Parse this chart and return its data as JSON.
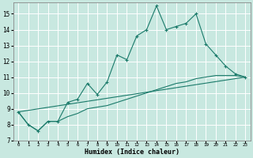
{
  "xlabel": "Humidex (Indice chaleur)",
  "background_color": "#c8e8e0",
  "grid_color": "#ffffff",
  "line_color": "#1a7a6a",
  "xlim": [
    -0.5,
    23.5
  ],
  "ylim": [
    7,
    15.7
  ],
  "yticks": [
    7,
    8,
    9,
    10,
    11,
    12,
    13,
    14,
    15
  ],
  "xticks": [
    0,
    1,
    2,
    3,
    4,
    5,
    6,
    7,
    8,
    9,
    10,
    11,
    12,
    13,
    14,
    15,
    16,
    17,
    18,
    19,
    20,
    21,
    22,
    23
  ],
  "line1_x": [
    0,
    1,
    2,
    3,
    4,
    5,
    6,
    7,
    8,
    9,
    10,
    11,
    12,
    13,
    14,
    15,
    16,
    17,
    18,
    19,
    20,
    21,
    22,
    23
  ],
  "line1_y": [
    8.8,
    8.0,
    7.6,
    8.2,
    8.2,
    9.4,
    9.6,
    10.6,
    9.9,
    10.7,
    12.4,
    12.1,
    13.6,
    14.0,
    15.5,
    14.0,
    14.2,
    14.4,
    15.0,
    13.1,
    12.4,
    11.7,
    11.2,
    11.0
  ],
  "line2_x": [
    0,
    23
  ],
  "line2_y": [
    8.8,
    11.0
  ],
  "line3_x": [
    0,
    1,
    2,
    3,
    4,
    5,
    6,
    7,
    8,
    9,
    10,
    11,
    12,
    13,
    14,
    15,
    16,
    17,
    18,
    19,
    20,
    21,
    22,
    23
  ],
  "line3_y": [
    8.8,
    8.0,
    7.6,
    8.2,
    8.2,
    8.5,
    8.7,
    9.0,
    9.1,
    9.2,
    9.4,
    9.6,
    9.8,
    10.0,
    10.2,
    10.4,
    10.6,
    10.7,
    10.9,
    11.0,
    11.1,
    11.1,
    11.1,
    11.0
  ]
}
